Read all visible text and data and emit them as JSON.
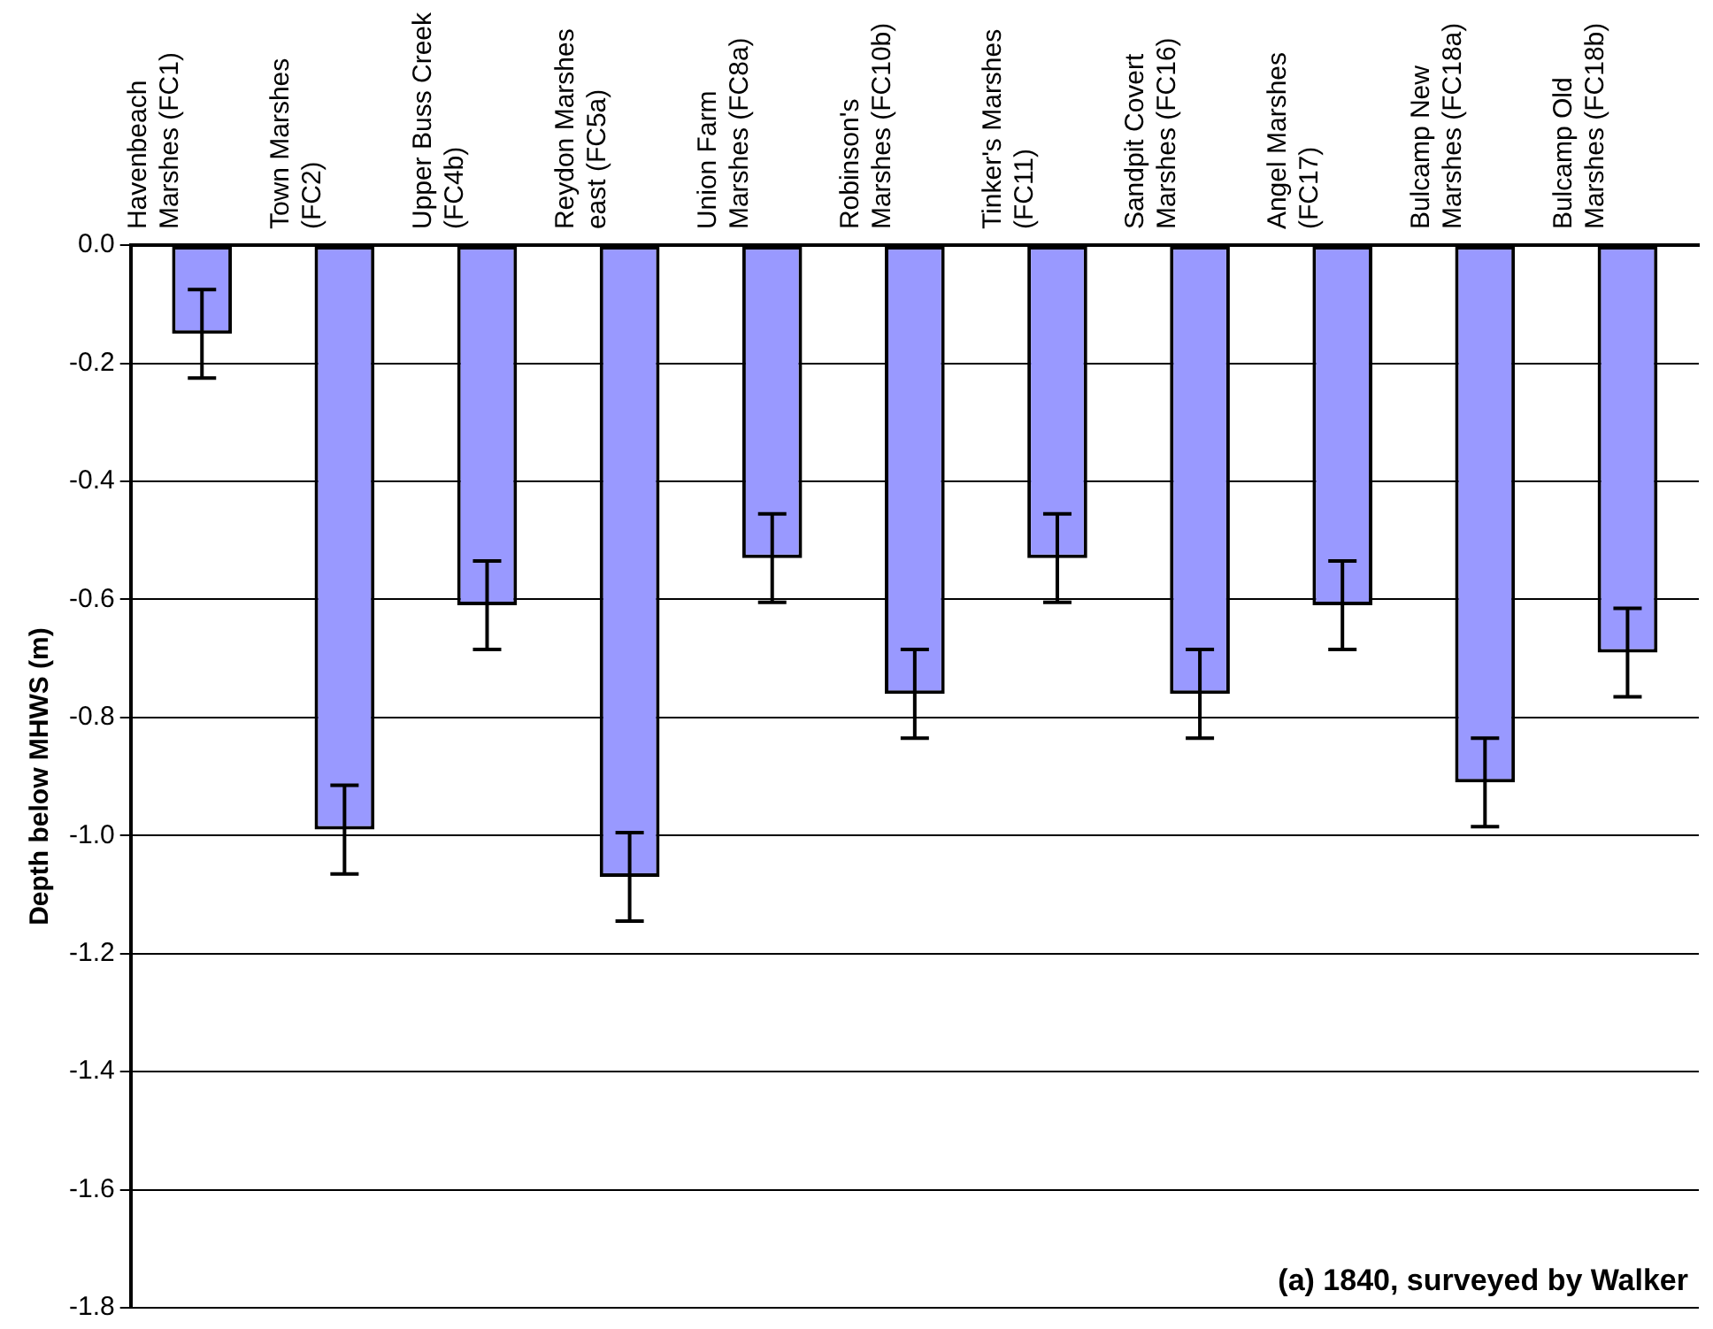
{
  "chart_data": {
    "type": "bar",
    "categories": [
      "Havenbeach Marshes (FC1)",
      "Town Marshes (FC2)",
      "Upper Buss Creek (FC4b)",
      "Reydon Marshes east (FC5a)",
      "Union Farm Marshes (FC8a)",
      "Robinson's Marshes (FC10b)",
      "Tinker's Marshes (FC11)",
      "Sandpit Covert Marshes (FC16)",
      "Angel Marshes (FC17)",
      "Bulcamp New Marshes (FC18a)",
      "Bulcamp Old Marshes (FC18b)"
    ],
    "values": [
      -0.15,
      -0.99,
      -0.61,
      -1.07,
      -0.53,
      -0.76,
      -0.53,
      -0.76,
      -0.61,
      -0.91,
      -0.69
    ],
    "errors": [
      0.075,
      0.075,
      0.075,
      0.075,
      0.075,
      0.075,
      0.075,
      0.075,
      0.075,
      0.075,
      0.075
    ],
    "color": "#9999ff",
    "ylabel": "Depth below MHWS (m)",
    "ylim": [
      -1.8,
      0
    ],
    "yticks": [
      {
        "value": 0,
        "label": "0.0"
      },
      {
        "value": -0.2,
        "label": "-0.2"
      },
      {
        "value": -0.4,
        "label": "-0.4"
      },
      {
        "value": -0.6,
        "label": "-0.6"
      },
      {
        "value": -0.8,
        "label": "-0.8"
      },
      {
        "value": -1.0,
        "label": "-1.0"
      },
      {
        "value": -1.2,
        "label": "-1.2"
      },
      {
        "value": -1.4,
        "label": "-1.4"
      },
      {
        "value": -1.6,
        "label": "-1.6"
      },
      {
        "value": -1.8,
        "label": "-1.8"
      }
    ],
    "grid": "y",
    "legend": false,
    "annotations": [
      "(a) 1840, surveyed by Walker"
    ]
  }
}
